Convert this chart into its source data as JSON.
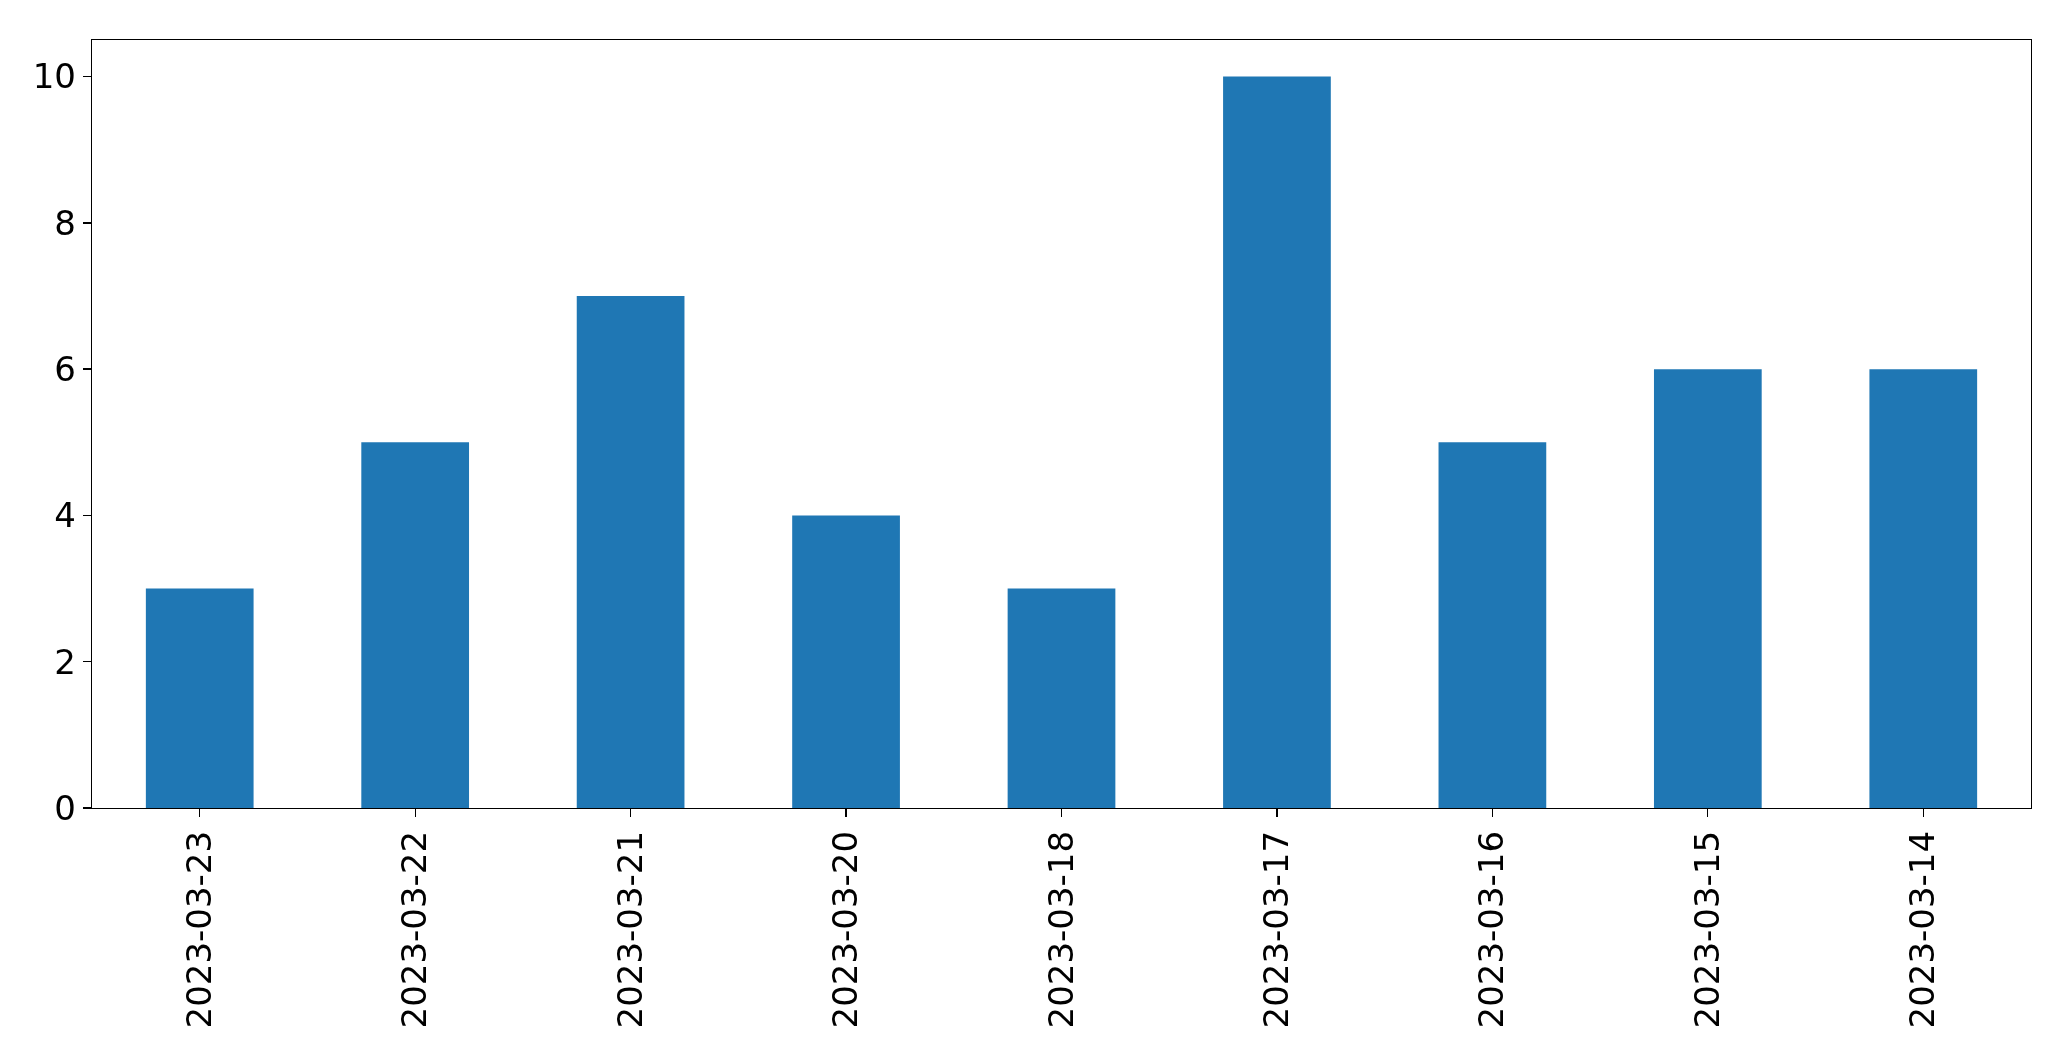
{
  "chart_data": {
    "type": "bar",
    "categories": [
      "2023-03-23",
      "2023-03-22",
      "2023-03-21",
      "2023-03-20",
      "2023-03-18",
      "2023-03-17",
      "2023-03-16",
      "2023-03-15",
      "2023-03-14"
    ],
    "values": [
      3,
      5,
      7,
      4,
      3,
      10,
      5,
      6,
      6
    ],
    "color": "#1f77b4",
    "ylim": [
      0,
      10.5
    ],
    "yticks": [
      0,
      2,
      4,
      6,
      8,
      10
    ]
  }
}
